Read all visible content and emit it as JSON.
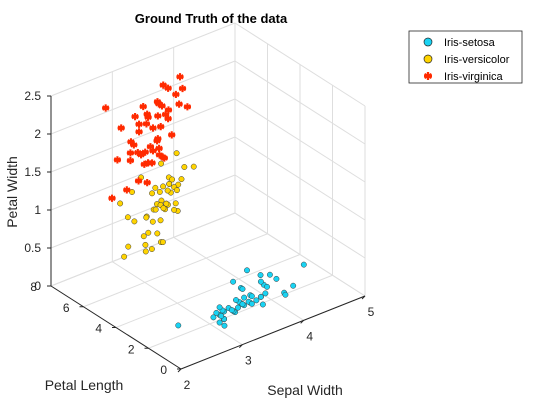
{
  "chart_data": {
    "type": "scatter3d",
    "title": "Ground Truth of the data",
    "xlabel": "Sepal Width",
    "ylabel": "Petal Length",
    "zlabel": "Petal Width",
    "xlim": [
      2,
      5
    ],
    "ylim": [
      0,
      8
    ],
    "zlim": [
      0,
      2.5
    ],
    "xticks": [
      "2",
      "3",
      "4",
      "5"
    ],
    "yticks": [
      "0",
      "2",
      "4",
      "6",
      "8"
    ],
    "zticks": [
      "0",
      "0.5",
      "1",
      "1.5",
      "2",
      "2.5"
    ],
    "grid": true,
    "legend_position": "top-right",
    "series": [
      {
        "name": "Iris-setosa",
        "color": "#19D3F3",
        "marker": "circle",
        "points": [
          [
            3.5,
            1.4,
            0.2
          ],
          [
            3.0,
            1.4,
            0.2
          ],
          [
            3.2,
            1.3,
            0.2
          ],
          [
            3.1,
            1.5,
            0.2
          ],
          [
            3.6,
            1.4,
            0.2
          ],
          [
            3.9,
            1.7,
            0.4
          ],
          [
            3.4,
            1.4,
            0.3
          ],
          [
            3.4,
            1.5,
            0.2
          ],
          [
            2.9,
            1.4,
            0.2
          ],
          [
            3.1,
            1.5,
            0.1
          ],
          [
            3.7,
            1.5,
            0.2
          ],
          [
            3.4,
            1.6,
            0.2
          ],
          [
            3.0,
            1.4,
            0.1
          ],
          [
            3.0,
            1.1,
            0.1
          ],
          [
            4.0,
            1.2,
            0.2
          ],
          [
            4.4,
            1.5,
            0.4
          ],
          [
            3.9,
            1.3,
            0.4
          ],
          [
            3.5,
            1.4,
            0.3
          ],
          [
            3.8,
            1.7,
            0.3
          ],
          [
            3.8,
            1.5,
            0.3
          ],
          [
            3.4,
            1.7,
            0.2
          ],
          [
            3.7,
            1.5,
            0.4
          ],
          [
            3.6,
            1.0,
            0.2
          ],
          [
            3.3,
            1.7,
            0.5
          ],
          [
            3.4,
            1.9,
            0.2
          ],
          [
            3.0,
            1.6,
            0.2
          ],
          [
            3.4,
            1.6,
            0.4
          ],
          [
            3.5,
            1.5,
            0.2
          ],
          [
            3.4,
            1.4,
            0.2
          ],
          [
            3.2,
            1.6,
            0.2
          ],
          [
            3.1,
            1.6,
            0.2
          ],
          [
            3.4,
            1.5,
            0.4
          ],
          [
            4.1,
            1.5,
            0.1
          ],
          [
            4.2,
            1.4,
            0.2
          ],
          [
            3.1,
            1.5,
            0.1
          ],
          [
            3.2,
            1.2,
            0.2
          ],
          [
            3.5,
            1.3,
            0.2
          ],
          [
            3.1,
            1.5,
            0.1
          ],
          [
            3.0,
            1.3,
            0.2
          ],
          [
            3.4,
            1.5,
            0.2
          ],
          [
            3.5,
            1.3,
            0.3
          ],
          [
            2.3,
            1.3,
            0.3
          ],
          [
            3.2,
            1.3,
            0.2
          ],
          [
            3.5,
            1.6,
            0.6
          ],
          [
            3.8,
            1.9,
            0.4
          ],
          [
            3.0,
            1.4,
            0.3
          ],
          [
            3.8,
            1.6,
            0.2
          ],
          [
            3.2,
            1.4,
            0.2
          ],
          [
            3.7,
            1.5,
            0.2
          ],
          [
            3.3,
            1.4,
            0.2
          ]
        ]
      },
      {
        "name": "Iris-versicolor",
        "color": "#FFD400",
        "marker": "circle",
        "points": [
          [
            3.2,
            4.7,
            1.4
          ],
          [
            3.2,
            4.5,
            1.5
          ],
          [
            3.1,
            4.9,
            1.5
          ],
          [
            2.3,
            4.0,
            1.3
          ],
          [
            2.8,
            4.6,
            1.5
          ],
          [
            2.8,
            4.5,
            1.3
          ],
          [
            3.3,
            4.7,
            1.6
          ],
          [
            2.4,
            3.3,
            1.0
          ],
          [
            2.9,
            4.6,
            1.3
          ],
          [
            2.7,
            3.9,
            1.4
          ],
          [
            2.0,
            3.5,
            1.0
          ],
          [
            3.0,
            4.2,
            1.5
          ],
          [
            2.2,
            4.0,
            1.0
          ],
          [
            2.9,
            4.7,
            1.4
          ],
          [
            2.9,
            3.6,
            1.3
          ],
          [
            3.1,
            4.4,
            1.4
          ],
          [
            3.0,
            4.5,
            1.5
          ],
          [
            2.7,
            4.1,
            1.0
          ],
          [
            2.2,
            4.5,
            1.5
          ],
          [
            2.5,
            3.9,
            1.1
          ],
          [
            3.2,
            4.8,
            1.8
          ],
          [
            2.8,
            4.0,
            1.3
          ],
          [
            2.5,
            4.9,
            1.5
          ],
          [
            2.8,
            4.7,
            1.2
          ],
          [
            2.9,
            4.3,
            1.3
          ],
          [
            3.0,
            4.4,
            1.4
          ],
          [
            2.8,
            4.8,
            1.4
          ],
          [
            3.0,
            5.0,
            1.7
          ],
          [
            2.9,
            4.5,
            1.5
          ],
          [
            2.6,
            3.5,
            1.0
          ],
          [
            2.4,
            3.8,
            1.1
          ],
          [
            2.4,
            3.7,
            1.0
          ],
          [
            2.7,
            3.9,
            1.2
          ],
          [
            2.7,
            5.1,
            1.6
          ],
          [
            3.0,
            4.5,
            1.5
          ],
          [
            3.4,
            4.5,
            1.6
          ],
          [
            3.1,
            4.7,
            1.5
          ],
          [
            2.3,
            4.4,
            1.3
          ],
          [
            3.0,
            4.1,
            1.3
          ],
          [
            2.5,
            4.0,
            1.3
          ],
          [
            2.6,
            4.4,
            1.2
          ],
          [
            3.0,
            4.6,
            1.4
          ],
          [
            2.6,
            4.0,
            1.2
          ],
          [
            2.3,
            3.3,
            1.0
          ],
          [
            2.7,
            4.2,
            1.3
          ],
          [
            3.0,
            4.2,
            1.2
          ],
          [
            2.9,
            4.2,
            1.3
          ],
          [
            2.9,
            4.3,
            1.3
          ],
          [
            2.5,
            3.0,
            1.1
          ],
          [
            2.8,
            4.1,
            1.3
          ]
        ]
      },
      {
        "name": "Iris-virginica",
        "color": "#FF2A00",
        "marker": "star",
        "points": [
          [
            3.3,
            6.0,
            2.5
          ],
          [
            2.7,
            5.1,
            1.9
          ],
          [
            3.0,
            5.9,
            2.1
          ],
          [
            2.9,
            5.6,
            1.8
          ],
          [
            3.0,
            5.8,
            2.2
          ],
          [
            3.0,
            6.6,
            2.1
          ],
          [
            2.5,
            4.5,
            1.7
          ],
          [
            2.9,
            6.3,
            1.8
          ],
          [
            2.5,
            5.8,
            1.8
          ],
          [
            3.6,
            6.1,
            2.5
          ],
          [
            3.2,
            5.1,
            2.0
          ],
          [
            2.7,
            5.3,
            1.9
          ],
          [
            3.0,
            5.5,
            2.1
          ],
          [
            2.5,
            5.0,
            2.0
          ],
          [
            2.8,
            5.1,
            2.4
          ],
          [
            3.2,
            5.3,
            2.3
          ],
          [
            3.0,
            5.5,
            1.8
          ],
          [
            3.8,
            6.7,
            2.2
          ],
          [
            2.6,
            6.9,
            2.3
          ],
          [
            2.2,
            5.0,
            1.5
          ],
          [
            3.2,
            5.7,
            2.3
          ],
          [
            2.8,
            4.9,
            2.0
          ],
          [
            2.8,
            6.7,
            2.0
          ],
          [
            2.7,
            4.9,
            1.8
          ],
          [
            3.3,
            5.7,
            2.1
          ],
          [
            3.2,
            6.0,
            1.8
          ],
          [
            2.8,
            4.8,
            1.8
          ],
          [
            3.0,
            4.9,
            1.8
          ],
          [
            2.8,
            5.6,
            2.1
          ],
          [
            3.0,
            5.8,
            1.6
          ],
          [
            2.8,
            6.1,
            1.9
          ],
          [
            3.8,
            6.4,
            2.0
          ],
          [
            2.8,
            5.6,
            2.2
          ],
          [
            2.8,
            5.1,
            1.5
          ],
          [
            2.6,
            5.6,
            1.4
          ],
          [
            3.0,
            6.1,
            2.3
          ],
          [
            3.4,
            5.6,
            2.4
          ],
          [
            3.1,
            5.5,
            1.8
          ],
          [
            3.0,
            4.8,
            1.8
          ],
          [
            3.1,
            5.4,
            2.1
          ],
          [
            3.1,
            5.6,
            2.4
          ],
          [
            3.1,
            5.1,
            2.3
          ],
          [
            2.7,
            5.1,
            1.9
          ],
          [
            3.2,
            5.9,
            2.3
          ],
          [
            3.3,
            5.7,
            2.5
          ],
          [
            3.0,
            5.2,
            2.3
          ],
          [
            2.5,
            5.0,
            1.9
          ],
          [
            3.0,
            5.2,
            2.0
          ],
          [
            3.4,
            5.4,
            2.3
          ],
          [
            3.0,
            5.1,
            1.8
          ]
        ]
      }
    ]
  }
}
